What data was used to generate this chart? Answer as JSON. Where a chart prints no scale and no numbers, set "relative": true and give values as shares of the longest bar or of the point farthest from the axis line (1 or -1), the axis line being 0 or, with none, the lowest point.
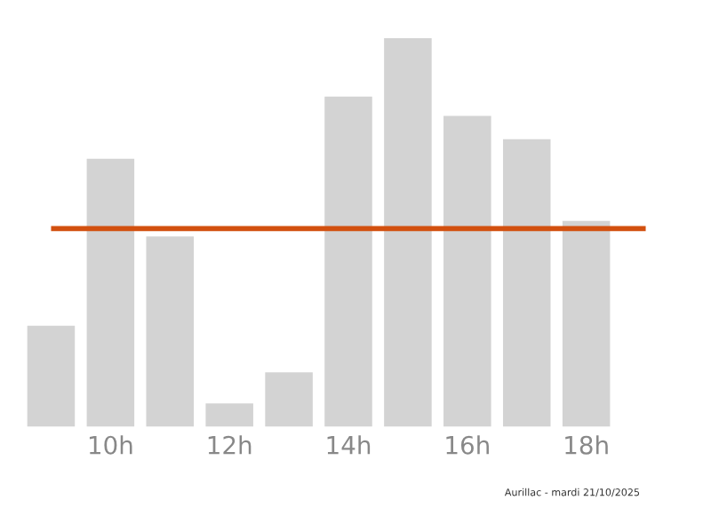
{
  "chart_data": {
    "type": "bar",
    "relative": true,
    "categories": [
      null,
      "10h",
      null,
      "12h",
      null,
      "14h",
      null,
      "16h",
      null,
      "18h"
    ],
    "values": [
      0.26,
      0.69,
      0.49,
      0.06,
      0.14,
      0.85,
      1,
      0.8,
      0.74,
      0.53
    ],
    "color": "#d3d3d3",
    "ref_lines": [
      {
        "axis": "y",
        "value": 0.51,
        "color": "#d2500f"
      }
    ],
    "annotations": [
      "Aurillac - mardi 21/10/2025"
    ],
    "grid": false,
    "legend": false
  }
}
